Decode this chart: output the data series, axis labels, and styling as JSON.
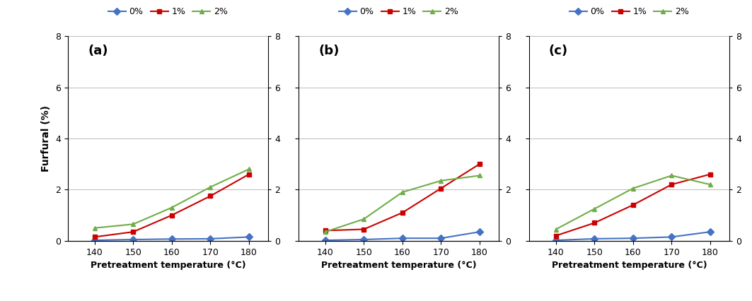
{
  "x": [
    140,
    150,
    160,
    170,
    180
  ],
  "subplots": [
    {
      "label": "(a)",
      "series": {
        "0%": [
          0.02,
          0.05,
          0.07,
          0.08,
          0.15
        ],
        "1%": [
          0.15,
          0.35,
          1.0,
          1.75,
          2.6
        ],
        "2%": [
          0.5,
          0.65,
          1.3,
          2.1,
          2.8
        ]
      }
    },
    {
      "label": "(b)",
      "series": {
        "0%": [
          0.02,
          0.05,
          0.1,
          0.1,
          0.35
        ],
        "1%": [
          0.4,
          0.45,
          1.1,
          2.05,
          3.0
        ],
        "2%": [
          0.35,
          0.85,
          1.9,
          2.35,
          2.55
        ]
      }
    },
    {
      "label": "(c)",
      "series": {
        "0%": [
          0.02,
          0.08,
          0.1,
          0.15,
          0.35
        ],
        "1%": [
          0.2,
          0.7,
          1.4,
          2.2,
          2.6
        ],
        "2%": [
          0.45,
          1.25,
          2.05,
          2.55,
          2.2
        ]
      }
    }
  ],
  "colors": {
    "0%": "#4472C4",
    "1%": "#CC0000",
    "2%": "#70AD47"
  },
  "markers": {
    "0%": "D",
    "1%": "s",
    "2%": "^"
  },
  "ylim": [
    0,
    8
  ],
  "yticks": [
    0,
    2,
    4,
    6,
    8
  ],
  "xlabel": "Pretreatment temperature (°C)",
  "ylabel": "Furfural (%)",
  "legend_labels": [
    "0%",
    "1%",
    "2%"
  ],
  "background_color": "#ffffff"
}
